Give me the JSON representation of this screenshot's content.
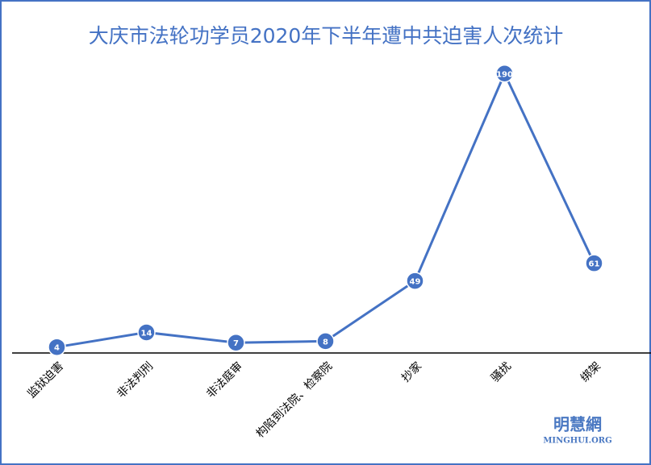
{
  "chart_data": {
    "type": "line",
    "title": "大庆市法轮功学员2020年下半年遭中共迫害人次统计",
    "categories": [
      "监狱迫害",
      "非法判刑",
      "非法庭审",
      "构陷到法院、检察院",
      "抄家",
      "骚扰",
      "绑架"
    ],
    "values": [
      4,
      14,
      7,
      8,
      49,
      190,
      61
    ],
    "color": "#4472c4",
    "ylim": [
      0,
      200
    ],
    "data_labels": true,
    "watermark": {
      "name": "明慧網",
      "site": "MINGHUI.ORG"
    }
  }
}
